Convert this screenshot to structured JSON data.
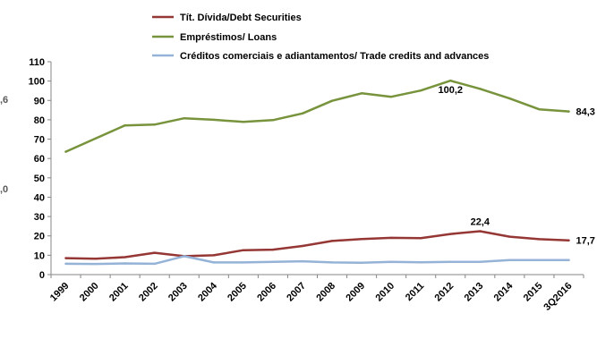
{
  "chart_data": {
    "type": "line",
    "title": "",
    "xlabel": "",
    "ylabel": "",
    "ylim": [
      0,
      110
    ],
    "yticks": [
      0,
      10,
      20,
      30,
      40,
      50,
      60,
      70,
      80,
      90,
      100,
      110
    ],
    "grid": false,
    "legend_position": "top-center",
    "categories": [
      "1999",
      "2000",
      "2001",
      "2002",
      "2003",
      "2004",
      "2005",
      "2006",
      "2007",
      "2008",
      "2009",
      "2010",
      "2011",
      "2012",
      "2013",
      "2014",
      "2015",
      "3Q2016"
    ],
    "series": [
      {
        "name": "Tít. Dívida/Debt Securities",
        "color": "#953735",
        "values": [
          8.5,
          8.2,
          9.0,
          11.3,
          9.5,
          10.0,
          12.6,
          12.9,
          14.8,
          17.4,
          18.4,
          19.0,
          18.8,
          21.0,
          22.4,
          19.6,
          18.3,
          17.7
        ]
      },
      {
        "name": "Empréstimos/ Loans",
        "color": "#77933C",
        "values": [
          63.5,
          70.3,
          77.1,
          77.5,
          80.8,
          80.0,
          78.9,
          79.8,
          83.3,
          89.8,
          93.7,
          91.9,
          95.1,
          100.2,
          96.0,
          91.0,
          85.4,
          84.3
        ]
      },
      {
        "name": "Créditos comerciais e adiantamentos/ Trade credits and advances",
        "color": "#95B3D7",
        "values": [
          5.6,
          5.5,
          5.8,
          5.6,
          9.5,
          6.3,
          6.3,
          6.6,
          6.9,
          6.3,
          6.1,
          6.6,
          6.4,
          6.6,
          6.6,
          7.5,
          7.5,
          7.5
        ]
      }
    ],
    "data_labels": [
      {
        "series": 1,
        "index": 13,
        "text": "100,2"
      },
      {
        "series": 1,
        "index": 17,
        "text": "84,3"
      },
      {
        "series": 0,
        "index": 14,
        "text": "22,4"
      },
      {
        "series": 0,
        "index": 17,
        "text": "17,7"
      }
    ],
    "edge_fragments": [
      ",6",
      ",0"
    ]
  }
}
